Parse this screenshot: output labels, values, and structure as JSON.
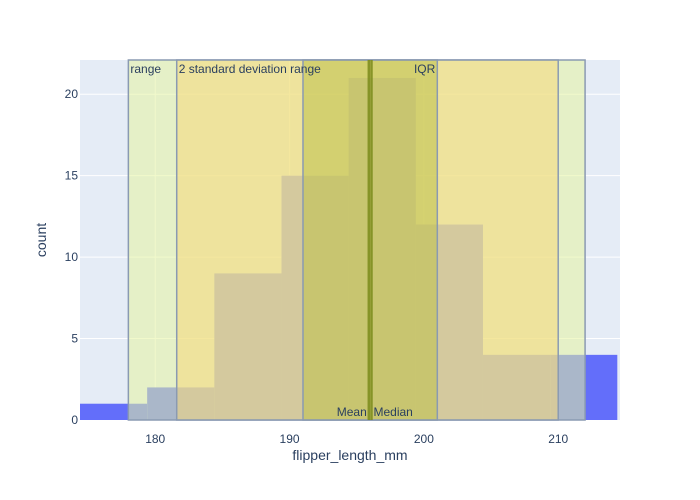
{
  "chart_data": {
    "type": "bar",
    "xlabel": "flipper_length_mm",
    "ylabel": "count",
    "xlim": [
      174.4,
      214.6
    ],
    "ylim": [
      0,
      22.1
    ],
    "x_ticks": [
      180,
      190,
      200,
      210
    ],
    "y_ticks": [
      0,
      5,
      10,
      15,
      20
    ],
    "grid": true,
    "bins": [
      {
        "x0": 174.4,
        "x1": 179.4,
        "count": 1
      },
      {
        "x0": 179.4,
        "x1": 184.4,
        "count": 2
      },
      {
        "x0": 184.4,
        "x1": 189.4,
        "count": 9
      },
      {
        "x0": 189.4,
        "x1": 194.4,
        "count": 15
      },
      {
        "x0": 194.4,
        "x1": 199.4,
        "count": 21
      },
      {
        "x0": 199.4,
        "x1": 204.4,
        "count": 12
      },
      {
        "x0": 204.4,
        "x1": 209.4,
        "count": 4
      },
      {
        "x0": 209.4,
        "x1": 214.4,
        "count": 4
      }
    ],
    "regions": [
      {
        "name": "range",
        "label": "range",
        "x0": 178,
        "x1": 212,
        "color": "#e6f4a0",
        "label_align": "start"
      },
      {
        "name": "two-sd-range",
        "label": "2 standard deviation range",
        "x0": 181.6,
        "x1": 210,
        "color": "#f5d87a",
        "label_align": "start"
      },
      {
        "name": "iqr",
        "label": "IQR",
        "x0": 191,
        "x1": 201,
        "color": "#bdc14a",
        "label_align": "end"
      }
    ],
    "lines": [
      {
        "name": "mean",
        "label": "Mean",
        "x": 195.9,
        "label_align": "end"
      },
      {
        "name": "median",
        "label": "Median",
        "x": 196.1,
        "label_align": "start"
      }
    ],
    "colors": {
      "bar": "#636efa",
      "plot_background": "#e5ecf6",
      "grid": "#ffffff",
      "line": "#7a8a1a",
      "region_border": "#8a9ab2",
      "text": "#2a3f5f"
    }
  }
}
